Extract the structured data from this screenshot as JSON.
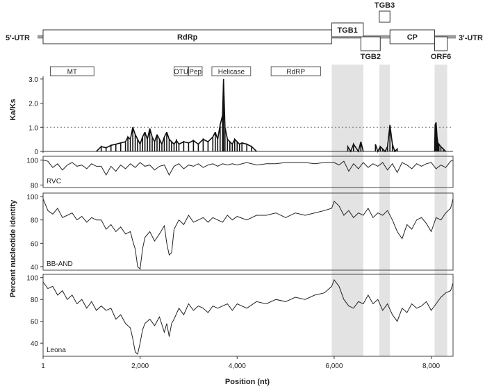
{
  "chart_data": {
    "type": "line",
    "xlabel": "Position (nt)",
    "xlim": [
      1,
      8450
    ],
    "x_ticks": [
      {
        "value": 1,
        "label": "1"
      },
      {
        "value": 2000,
        "label": "2,000"
      },
      {
        "value": 4000,
        "label": "4,000"
      },
      {
        "value": 6000,
        "label": "6,000"
      },
      {
        "value": 8000,
        "label": "8,000"
      }
    ],
    "shaded_regions": [
      [
        5950,
        6600
      ],
      [
        6930,
        7150
      ],
      [
        8070,
        8330
      ]
    ],
    "genome_map": {
      "utr5_label": "5'-UTR",
      "utr3_label": "3'-UTR",
      "orfs": [
        {
          "label": "RdRp",
          "start": 1,
          "end": 5950,
          "frame": "middle"
        },
        {
          "label": "TGB1",
          "start": 5950,
          "end": 6600,
          "frame": "upper"
        },
        {
          "label": "TGB2",
          "start": 6550,
          "end": 6950,
          "frame": "lower"
        },
        {
          "label": "TGB3",
          "start": 6930,
          "end": 7150,
          "frame": "top"
        },
        {
          "label": "CP",
          "start": 7150,
          "end": 8070,
          "frame": "middle"
        },
        {
          "label": "ORF6",
          "start": 8070,
          "end": 8330,
          "frame": "lower"
        }
      ],
      "domains": [
        {
          "label": "MT",
          "start": 150,
          "end": 1050
        },
        {
          "label": "OTU",
          "start": 2700,
          "end": 2990
        },
        {
          "label": "Pep",
          "start": 3000,
          "end": 3280
        },
        {
          "label": "Helicase",
          "start": 3480,
          "end": 4280
        },
        {
          "label": "RdRP",
          "start": 4700,
          "end": 5720
        }
      ]
    },
    "ka_ks": {
      "ylabel": "Ka/Ks",
      "ylim": [
        0,
        3.6
      ],
      "y_ticks": [
        {
          "value": 0,
          "label": "0"
        },
        {
          "value": 1.0,
          "label": "1.0"
        },
        {
          "value": 2.0,
          "label": "2.0"
        },
        {
          "value": 3.0,
          "label": "3.0"
        }
      ],
      "reference_line": 1.0,
      "x": [
        1100,
        1200,
        1300,
        1400,
        1500,
        1600,
        1700,
        1750,
        1800,
        1850,
        1900,
        1950,
        2000,
        2050,
        2100,
        2150,
        2200,
        2250,
        2300,
        2350,
        2400,
        2450,
        2500,
        2550,
        2600,
        2650,
        2700,
        2750,
        2800,
        2900,
        3000,
        3100,
        3200,
        3300,
        3400,
        3500,
        3550,
        3600,
        3650,
        3700,
        3720,
        3750,
        3800,
        3850,
        3900,
        3950,
        4000,
        4050,
        4100,
        4200,
        4300,
        4400,
        6280,
        6340,
        6400,
        6500,
        6550,
        6600,
        6850,
        6900,
        6950,
        7000,
        7050,
        7100,
        7150,
        7200,
        7250,
        7300,
        8070,
        8080,
        8100,
        8120,
        8140,
        8160,
        8200,
        8250,
        8300
      ],
      "y": [
        0,
        0.2,
        0.15,
        0.25,
        0.3,
        0.35,
        0.4,
        0.6,
        0.5,
        1.0,
        0.7,
        0.5,
        0.3,
        0.6,
        0.8,
        0.5,
        0.95,
        0.6,
        0.4,
        0.7,
        0.5,
        0.3,
        0.6,
        0.8,
        0.5,
        0.4,
        0.3,
        0.45,
        0.3,
        0.4,
        0.35,
        0.45,
        0.3,
        0.5,
        0.4,
        0.6,
        0.8,
        0.5,
        1.1,
        1.5,
        3.0,
        1.0,
        0.5,
        0.4,
        0.3,
        0.5,
        0.4,
        0.3,
        0.35,
        0.3,
        0.2,
        0,
        0.2,
        0,
        0.3,
        0,
        0.4,
        0,
        0.3,
        0,
        0.2,
        0.1,
        0,
        0.2,
        1.1,
        0.3,
        0,
        0.1,
        0,
        1.1,
        1.2,
        0.6,
        0.3,
        0.3,
        0.2,
        0.1,
        0
      ]
    },
    "series": [
      {
        "name": "RVC",
        "ylim": [
          78,
          103
        ],
        "y_ticks": [
          {
            "value": 80,
            "label": "80"
          },
          {
            "value": 100,
            "label": "100"
          }
        ],
        "x": [
          1,
          100,
          200,
          300,
          400,
          500,
          600,
          700,
          800,
          900,
          1000,
          1100,
          1200,
          1300,
          1400,
          1500,
          1600,
          1700,
          1800,
          1900,
          2000,
          2100,
          2200,
          2300,
          2400,
          2500,
          2600,
          2700,
          2800,
          2900,
          3000,
          3100,
          3200,
          3300,
          3400,
          3500,
          3600,
          3700,
          3800,
          3900,
          4000,
          4200,
          4400,
          4600,
          4800,
          5000,
          5200,
          5400,
          5600,
          5800,
          6000,
          6100,
          6200,
          6300,
          6400,
          6500,
          6600,
          6700,
          6800,
          6900,
          7000,
          7100,
          7200,
          7300,
          7400,
          7500,
          7600,
          7700,
          7800,
          7900,
          8000,
          8100,
          8200,
          8300,
          8400,
          8450
        ],
        "y": [
          100,
          99,
          94,
          97,
          92,
          96,
          98,
          95,
          96,
          93,
          97,
          95,
          95,
          88,
          95,
          91,
          96,
          93,
          97,
          94,
          98,
          95,
          96,
          92,
          95,
          96,
          88,
          95,
          97,
          93,
          96,
          95,
          97,
          94,
          96,
          97,
          95,
          97,
          96,
          97,
          96,
          98,
          96,
          97,
          97,
          98,
          98,
          98,
          97,
          98,
          98,
          96,
          99,
          91,
          97,
          93,
          98,
          94,
          97,
          95,
          98,
          92,
          97,
          90,
          98,
          96,
          93,
          97,
          95,
          97,
          98,
          93,
          96,
          94,
          99,
          100
        ]
      },
      {
        "name": "BB-AND",
        "ylim": [
          37,
          103
        ],
        "y_ticks": [
          {
            "value": 40,
            "label": "40"
          },
          {
            "value": 60,
            "label": "60"
          },
          {
            "value": 80,
            "label": "80"
          },
          {
            "value": 100,
            "label": "100"
          }
        ],
        "x": [
          1,
          100,
          200,
          300,
          400,
          500,
          600,
          700,
          800,
          900,
          1000,
          1100,
          1200,
          1300,
          1400,
          1500,
          1600,
          1700,
          1800,
          1850,
          1900,
          1950,
          2000,
          2050,
          2100,
          2200,
          2300,
          2400,
          2500,
          2550,
          2600,
          2650,
          2700,
          2800,
          2900,
          3000,
          3100,
          3200,
          3300,
          3400,
          3500,
          3600,
          3700,
          3800,
          3900,
          4000,
          4200,
          4400,
          4600,
          4800,
          5000,
          5200,
          5400,
          5600,
          5800,
          5950,
          6000,
          6100,
          6200,
          6300,
          6400,
          6500,
          6600,
          6700,
          6800,
          6900,
          7000,
          7100,
          7200,
          7300,
          7400,
          7500,
          7600,
          7700,
          7800,
          7900,
          8000,
          8100,
          8200,
          8300,
          8400,
          8450
        ],
        "y": [
          98,
          88,
          85,
          90,
          82,
          84,
          86,
          80,
          83,
          78,
          82,
          80,
          80,
          72,
          76,
          70,
          74,
          68,
          70,
          62,
          55,
          40,
          38,
          55,
          65,
          70,
          62,
          68,
          75,
          60,
          50,
          52,
          72,
          80,
          76,
          84,
          78,
          80,
          82,
          78,
          82,
          80,
          78,
          84,
          80,
          83,
          80,
          84,
          84,
          86,
          82,
          86,
          84,
          86,
          88,
          90,
          96,
          92,
          84,
          88,
          82,
          86,
          84,
          90,
          82,
          86,
          84,
          88,
          80,
          70,
          64,
          76,
          72,
          80,
          82,
          77,
          70,
          82,
          80,
          86,
          90,
          98
        ]
      },
      {
        "name": "Leona",
        "ylim": [
          28,
          103
        ],
        "y_ticks": [
          {
            "value": 40,
            "label": "40"
          },
          {
            "value": 60,
            "label": "60"
          },
          {
            "value": 80,
            "label": "80"
          },
          {
            "value": 100,
            "label": "100"
          }
        ],
        "x": [
          1,
          100,
          200,
          300,
          400,
          500,
          600,
          700,
          800,
          900,
          1000,
          1100,
          1200,
          1300,
          1400,
          1500,
          1600,
          1700,
          1800,
          1850,
          1900,
          1950,
          2000,
          2050,
          2100,
          2200,
          2300,
          2400,
          2500,
          2550,
          2600,
          2650,
          2700,
          2800,
          2900,
          3000,
          3100,
          3200,
          3300,
          3400,
          3500,
          3600,
          3700,
          3800,
          3900,
          4000,
          4200,
          4400,
          4600,
          4800,
          5000,
          5200,
          5400,
          5600,
          5800,
          5950,
          6000,
          6100,
          6200,
          6300,
          6400,
          6500,
          6600,
          6700,
          6800,
          6900,
          7000,
          7100,
          7200,
          7300,
          7400,
          7500,
          7600,
          7700,
          7800,
          7900,
          8000,
          8100,
          8200,
          8300,
          8400,
          8450
        ],
        "y": [
          96,
          90,
          92,
          84,
          88,
          80,
          84,
          76,
          80,
          72,
          78,
          70,
          74,
          70,
          72,
          62,
          66,
          58,
          54,
          44,
          32,
          30,
          40,
          52,
          58,
          62,
          56,
          64,
          50,
          58,
          46,
          58,
          62,
          72,
          66,
          76,
          70,
          74,
          72,
          68,
          74,
          72,
          74,
          76,
          70,
          76,
          72,
          78,
          76,
          80,
          78,
          82,
          80,
          84,
          86,
          92,
          98,
          92,
          80,
          74,
          72,
          78,
          76,
          84,
          76,
          80,
          70,
          76,
          66,
          60,
          72,
          68,
          76,
          72,
          74,
          78,
          70,
          76,
          82,
          86,
          88,
          95
        ]
      }
    ],
    "panel_ylabel": "Percent nucleotide identity"
  }
}
